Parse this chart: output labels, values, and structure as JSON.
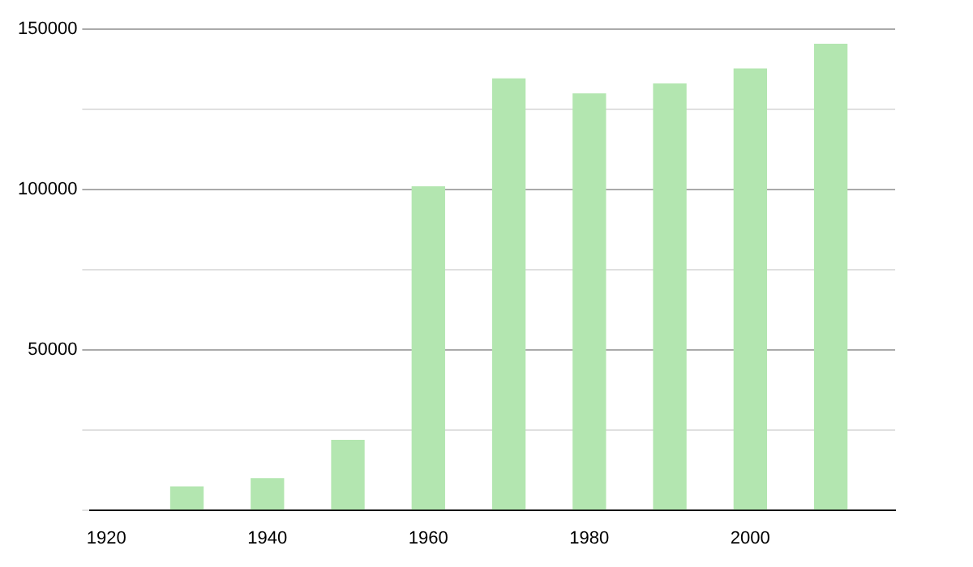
{
  "chart_data": {
    "type": "bar",
    "x": [
      1930,
      1940,
      1950,
      1960,
      1970,
      1980,
      1990,
      2000,
      2010
    ],
    "values": [
      7200,
      9800,
      21700,
      100800,
      134500,
      129800,
      132900,
      137600,
      145300
    ],
    "color": "#b3e6b0",
    "xlim": [
      1918,
      2018
    ],
    "xticks": [
      1920,
      1940,
      1960,
      1980,
      2000
    ],
    "ylim": [
      0,
      150000
    ],
    "yticks": [
      {
        "value": 0,
        "label": null
      },
      {
        "value": 25000,
        "label": null
      },
      50000,
      {
        "value": 75000,
        "label": null
      },
      100000,
      {
        "value": 125000,
        "label": null
      },
      150000
    ],
    "grid": "y",
    "legend": false
  }
}
